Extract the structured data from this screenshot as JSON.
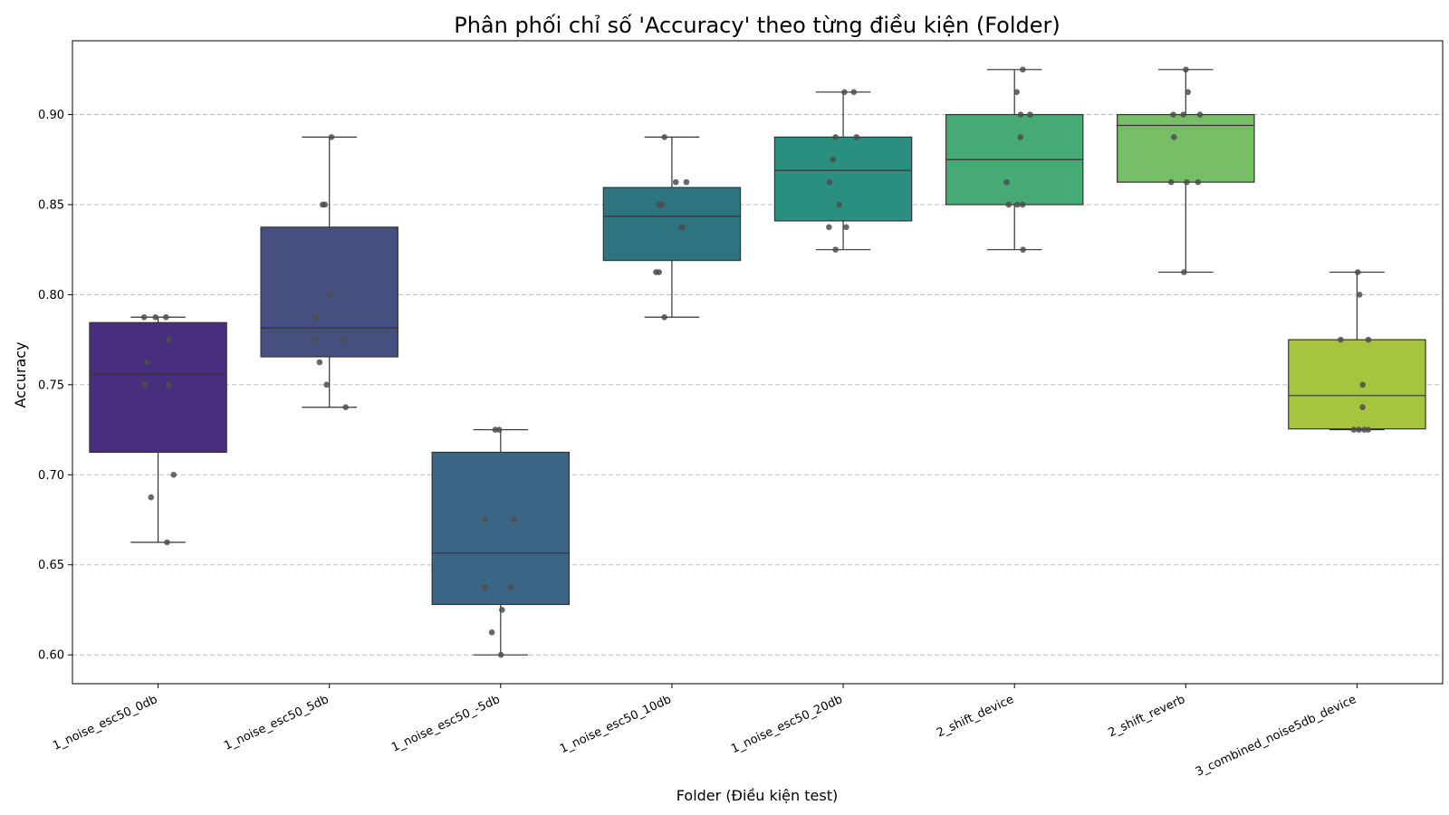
{
  "chart_data": {
    "type": "box",
    "title": "Phân phối chỉ số 'Accuracy' theo từng điều kiện (Folder)",
    "xlabel": "Folder (Điều kiện test)",
    "ylabel": "Accuracy",
    "ylim": [
      0.584,
      0.941
    ],
    "yticks": [
      0.6,
      0.65,
      0.7,
      0.75,
      0.8,
      0.85,
      0.9
    ],
    "ytick_labels": [
      "0.60",
      "0.65",
      "0.70",
      "0.75",
      "0.80",
      "0.85",
      "0.90"
    ],
    "grid": "y-dashed",
    "categories": [
      "1_noise_esc50_0db",
      "1_noise_esc50_5db",
      "1_noise_esc50_-5db",
      "1_noise_esc50_10db",
      "1_noise_esc50_20db",
      "2_shift_device",
      "2_shift_reverb",
      "3_combined_noise5db_device"
    ],
    "boxes": [
      {
        "category": "1_noise_esc50_0db",
        "color": "#472f7d",
        "whisker_low": 0.6625,
        "q1": 0.7125,
        "median": 0.756,
        "q3": 0.7845,
        "whisker_high": 0.7875,
        "points": [
          0.7875,
          0.7875,
          0.7875,
          0.775,
          0.7625,
          0.75,
          0.75,
          0.7,
          0.6875,
          0.6625
        ]
      },
      {
        "category": "1_noise_esc50_5db",
        "color": "#45507f",
        "whisker_low": 0.7375,
        "q1": 0.7655,
        "median": 0.7815,
        "q3": 0.8375,
        "whisker_high": 0.8875,
        "points": [
          0.8875,
          0.85,
          0.85,
          0.8,
          0.7875,
          0.775,
          0.775,
          0.7625,
          0.75,
          0.7375
        ]
      },
      {
        "category": "1_noise_esc50_-5db",
        "color": "#3a6585",
        "whisker_low": 0.6,
        "q1": 0.628,
        "median": 0.6565,
        "q3": 0.7125,
        "whisker_high": 0.725,
        "points": [
          0.725,
          0.725,
          0.675,
          0.675,
          0.6375,
          0.6375,
          0.625,
          0.6125,
          0.6
        ]
      },
      {
        "category": "1_noise_esc50_10db",
        "color": "#2e7380",
        "whisker_low": 0.7875,
        "q1": 0.819,
        "median": 0.8435,
        "q3": 0.8595,
        "whisker_high": 0.8875,
        "points": [
          0.8875,
          0.8625,
          0.8625,
          0.85,
          0.85,
          0.8375,
          0.8375,
          0.8125,
          0.8125,
          0.7875
        ]
      },
      {
        "category": "1_noise_esc50_20db",
        "color": "#2a8f7f",
        "whisker_low": 0.825,
        "q1": 0.841,
        "median": 0.869,
        "q3": 0.8875,
        "whisker_high": 0.9125,
        "points": [
          0.9125,
          0.9125,
          0.8875,
          0.8875,
          0.875,
          0.8625,
          0.85,
          0.8375,
          0.8375,
          0.825
        ]
      },
      {
        "category": "2_shift_device",
        "color": "#46aa75",
        "whisker_low": 0.825,
        "q1": 0.85,
        "median": 0.875,
        "q3": 0.9,
        "whisker_high": 0.925,
        "points": [
          0.925,
          0.9125,
          0.9,
          0.9,
          0.8875,
          0.8625,
          0.85,
          0.85,
          0.85,
          0.825
        ]
      },
      {
        "category": "2_shift_reverb",
        "color": "#77be66",
        "whisker_low": 0.8125,
        "q1": 0.8625,
        "median": 0.894,
        "q3": 0.9,
        "whisker_high": 0.925,
        "points": [
          0.925,
          0.9125,
          0.9,
          0.9,
          0.9,
          0.8875,
          0.8625,
          0.8625,
          0.8625,
          0.8125
        ]
      },
      {
        "category": "3_combined_noise5db_device",
        "color": "#a7c43f",
        "whisker_low": 0.725,
        "q1": 0.7255,
        "median": 0.744,
        "q3": 0.775,
        "whisker_high": 0.8125,
        "points": [
          0.8125,
          0.8,
          0.775,
          0.775,
          0.75,
          0.7375,
          0.725,
          0.725,
          0.725,
          0.725
        ]
      }
    ]
  }
}
